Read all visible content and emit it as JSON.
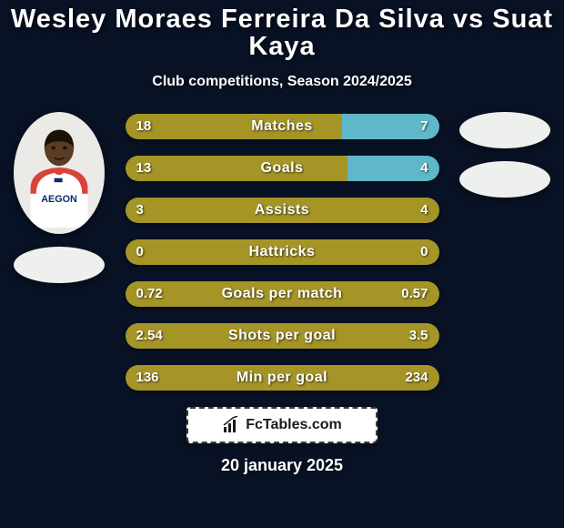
{
  "title_line1": "Wesley Moraes Ferreira Da Silva vs Suat",
  "title_line2": "Kaya",
  "title_fontsize": 29,
  "subtitle": "Club competitions, Season 2024/2025",
  "subtitle_fontsize": 16,
  "date": "20 january 2025",
  "date_fontsize": 18,
  "watermark_text": "FcTables.com",
  "colors": {
    "bg": "#081224",
    "player1_fill": "#a59527",
    "player2_fill": "#5fb8c9",
    "neutral_fill": "#a59527",
    "text": "#ffffff"
  },
  "bar_style": {
    "height": 28,
    "radius": 14,
    "gap": 18,
    "label_fontsize": 16,
    "value_fontsize": 15
  },
  "stats": [
    {
      "label": "Matches",
      "p1": "18",
      "p2": "7",
      "p1_pct": 69,
      "p2_pct": 31
    },
    {
      "label": "Goals",
      "p1": "13",
      "p2": "4",
      "p1_pct": 71,
      "p2_pct": 29
    },
    {
      "label": "Assists",
      "p1": "3",
      "p2": "4",
      "p1_pct": 100,
      "p2_pct": 0
    },
    {
      "label": "Hattricks",
      "p1": "0",
      "p2": "0",
      "p1_pct": 100,
      "p2_pct": 0
    },
    {
      "label": "Goals per match",
      "p1": "0.72",
      "p2": "0.57",
      "p1_pct": 100,
      "p2_pct": 0
    },
    {
      "label": "Shots per goal",
      "p1": "2.54",
      "p2": "3.5",
      "p1_pct": 100,
      "p2_pct": 0
    },
    {
      "label": "Min per goal",
      "p1": "136",
      "p2": "234",
      "p1_pct": 100,
      "p2_pct": 0
    }
  ],
  "avatars": {
    "left_has_photo": true,
    "right_has_photo": false
  }
}
